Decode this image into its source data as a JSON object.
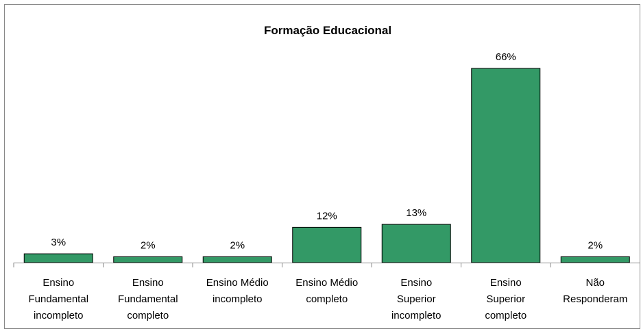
{
  "chart_data": {
    "type": "bar",
    "title": "Formação Educacional",
    "categories": [
      "Ensino\nFundamental\nincompleto",
      "Ensino\nFundamental\ncompleto",
      "Ensino Médio\nincompleto",
      "Ensino Médio\ncompleto",
      "Ensino\nSuperior\nincompleto",
      "Ensino\nSuperior\ncompleto",
      "Não\nResponderam"
    ],
    "values": [
      3,
      2,
      2,
      12,
      13,
      66,
      2
    ],
    "value_labels": [
      "3%",
      "2%",
      "2%",
      "12%",
      "13%",
      "66%",
      "2%"
    ],
    "color": "#339966"
  }
}
